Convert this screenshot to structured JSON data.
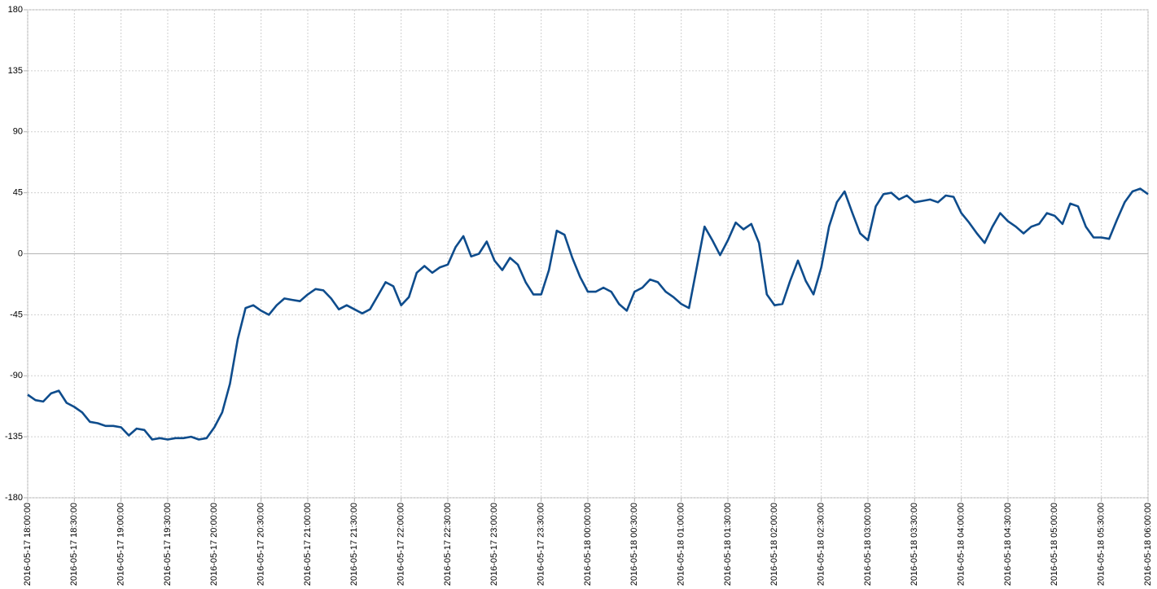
{
  "chart_data": {
    "type": "line",
    "x": [
      "2016-05-17 18:00:00",
      "2016-05-17 18:05:00",
      "2016-05-17 18:10:00",
      "2016-05-17 18:15:00",
      "2016-05-17 18:20:00",
      "2016-05-17 18:25:00",
      "2016-05-17 18:30:00",
      "2016-05-17 18:35:00",
      "2016-05-17 18:40:00",
      "2016-05-17 18:45:00",
      "2016-05-17 18:50:00",
      "2016-05-17 18:55:00",
      "2016-05-17 19:00:00",
      "2016-05-17 19:05:00",
      "2016-05-17 19:10:00",
      "2016-05-17 19:15:00",
      "2016-05-17 19:20:00",
      "2016-05-17 19:25:00",
      "2016-05-17 19:30:00",
      "2016-05-17 19:35:00",
      "2016-05-17 19:40:00",
      "2016-05-17 19:45:00",
      "2016-05-17 19:50:00",
      "2016-05-17 19:55:00",
      "2016-05-17 20:00:00",
      "2016-05-17 20:05:00",
      "2016-05-17 20:10:00",
      "2016-05-17 20:15:00",
      "2016-05-17 20:20:00",
      "2016-05-17 20:25:00",
      "2016-05-17 20:30:00",
      "2016-05-17 20:35:00",
      "2016-05-17 20:40:00",
      "2016-05-17 20:45:00",
      "2016-05-17 20:50:00",
      "2016-05-17 20:55:00",
      "2016-05-17 21:00:00",
      "2016-05-17 21:05:00",
      "2016-05-17 21:10:00",
      "2016-05-17 21:15:00",
      "2016-05-17 21:20:00",
      "2016-05-17 21:25:00",
      "2016-05-17 21:30:00",
      "2016-05-17 21:35:00",
      "2016-05-17 21:40:00",
      "2016-05-17 21:45:00",
      "2016-05-17 21:50:00",
      "2016-05-17 21:55:00",
      "2016-05-17 22:00:00",
      "2016-05-17 22:05:00",
      "2016-05-17 22:10:00",
      "2016-05-17 22:15:00",
      "2016-05-17 22:20:00",
      "2016-05-17 22:25:00",
      "2016-05-17 22:30:00",
      "2016-05-17 22:35:00",
      "2016-05-17 22:40:00",
      "2016-05-17 22:45:00",
      "2016-05-17 22:50:00",
      "2016-05-17 22:55:00",
      "2016-05-17 23:00:00",
      "2016-05-17 23:05:00",
      "2016-05-17 23:10:00",
      "2016-05-17 23:15:00",
      "2016-05-17 23:20:00",
      "2016-05-17 23:25:00",
      "2016-05-17 23:30:00",
      "2016-05-17 23:35:00",
      "2016-05-17 23:40:00",
      "2016-05-17 23:45:00",
      "2016-05-17 23:50:00",
      "2016-05-17 23:55:00",
      "2016-05-18 00:00:00",
      "2016-05-18 00:05:00",
      "2016-05-18 00:10:00",
      "2016-05-18 00:15:00",
      "2016-05-18 00:20:00",
      "2016-05-18 00:25:00",
      "2016-05-18 00:30:00",
      "2016-05-18 00:35:00",
      "2016-05-18 00:40:00",
      "2016-05-18 00:45:00",
      "2016-05-18 00:50:00",
      "2016-05-18 00:55:00",
      "2016-05-18 01:00:00",
      "2016-05-18 01:05:00",
      "2016-05-18 01:10:00",
      "2016-05-18 01:15:00",
      "2016-05-18 01:20:00",
      "2016-05-18 01:25:00",
      "2016-05-18 01:30:00",
      "2016-05-18 01:35:00",
      "2016-05-18 01:40:00",
      "2016-05-18 01:45:00",
      "2016-05-18 01:50:00",
      "2016-05-18 01:55:00",
      "2016-05-18 02:00:00",
      "2016-05-18 02:05:00",
      "2016-05-18 02:10:00",
      "2016-05-18 02:15:00",
      "2016-05-18 02:20:00",
      "2016-05-18 02:25:00",
      "2016-05-18 02:30:00",
      "2016-05-18 02:35:00",
      "2016-05-18 02:40:00",
      "2016-05-18 02:45:00",
      "2016-05-18 02:50:00",
      "2016-05-18 02:55:00",
      "2016-05-18 03:00:00",
      "2016-05-18 03:05:00",
      "2016-05-18 03:10:00",
      "2016-05-18 03:15:00",
      "2016-05-18 03:20:00",
      "2016-05-18 03:25:00",
      "2016-05-18 03:30:00",
      "2016-05-18 03:35:00",
      "2016-05-18 03:40:00",
      "2016-05-18 03:45:00",
      "2016-05-18 03:50:00",
      "2016-05-18 03:55:00",
      "2016-05-18 04:00:00",
      "2016-05-18 04:05:00",
      "2016-05-18 04:10:00",
      "2016-05-18 04:15:00",
      "2016-05-18 04:20:00",
      "2016-05-18 04:25:00",
      "2016-05-18 04:30:00",
      "2016-05-18 04:35:00",
      "2016-05-18 04:40:00",
      "2016-05-18 04:45:00",
      "2016-05-18 04:50:00",
      "2016-05-18 04:55:00",
      "2016-05-18 05:00:00",
      "2016-05-18 05:05:00",
      "2016-05-18 05:10:00",
      "2016-05-18 05:15:00",
      "2016-05-18 05:20:00",
      "2016-05-18 05:25:00",
      "2016-05-18 05:30:00",
      "2016-05-18 05:35:00",
      "2016-05-18 05:40:00",
      "2016-05-18 05:45:00",
      "2016-05-18 05:50:00",
      "2016-05-18 05:55:00",
      "2016-05-18 06:00:00"
    ],
    "series": [
      {
        "color": "#0e4c8c",
        "values": [
          -104,
          -108,
          -109,
          -103,
          -101,
          -110,
          -113,
          -117,
          -124,
          -125,
          -127,
          -127,
          -128,
          -134,
          -129,
          -130,
          -137,
          -136,
          -137,
          -136,
          -136,
          -135,
          -137,
          -136,
          -128,
          -117,
          -96,
          -63,
          -40,
          -38,
          -42,
          -45,
          -38,
          -33,
          -34,
          -35,
          -30,
          -26,
          -27,
          -33,
          -41,
          -38,
          -41,
          -44,
          -41,
          -31,
          -21,
          -24,
          -38,
          -32,
          -14,
          -9,
          -14,
          -10,
          -8,
          5,
          13,
          -2,
          0,
          9,
          -5,
          -12,
          -3,
          -8,
          -21,
          -30,
          -30,
          -12,
          17,
          14,
          -3,
          -17,
          -28,
          -28,
          -25,
          -28,
          -37,
          -42,
          -28,
          -25,
          -19,
          -21,
          -28,
          -32,
          -37,
          -40,
          -10,
          20,
          10,
          -1,
          10,
          23,
          18,
          22,
          8,
          -30,
          -38,
          -37,
          -20,
          -5,
          -20,
          -30,
          -10,
          20,
          38,
          46,
          30,
          15,
          10,
          35,
          44,
          45,
          40,
          43,
          38,
          39,
          40,
          38,
          43,
          42,
          30,
          23,
          15,
          8,
          20,
          30,
          24,
          20,
          15,
          20,
          22,
          30,
          28,
          22,
          37,
          35,
          20,
          12,
          12,
          11,
          25,
          38,
          46,
          48,
          44
        ]
      }
    ],
    "xlim": [
      "2016-05-17 18:00:00",
      "2016-05-18 06:00:00"
    ],
    "xticks": [
      "2016-05-17 18:00:00",
      "2016-05-17 18:30:00",
      "2016-05-17 19:00:00",
      "2016-05-17 19:30:00",
      "2016-05-17 20:00:00",
      "2016-05-17 20:30:00",
      "2016-05-17 21:00:00",
      "2016-05-17 21:30:00",
      "2016-05-17 22:00:00",
      "2016-05-17 22:30:00",
      "2016-05-17 23:00:00",
      "2016-05-17 23:30:00",
      "2016-05-18 00:00:00",
      "2016-05-18 00:30:00",
      "2016-05-18 01:00:00",
      "2016-05-18 01:30:00",
      "2016-05-18 02:00:00",
      "2016-05-18 02:30:00",
      "2016-05-18 03:00:00",
      "2016-05-18 03:30:00",
      "2016-05-18 04:00:00",
      "2016-05-18 04:30:00",
      "2016-05-18 05:00:00",
      "2016-05-18 05:30:00",
      "2016-05-18 06:00:00"
    ],
    "ylim": [
      -180,
      180
    ],
    "yticks": [
      -180,
      -135,
      -90,
      -45,
      0,
      45,
      90,
      135,
      180
    ],
    "grid": true
  }
}
